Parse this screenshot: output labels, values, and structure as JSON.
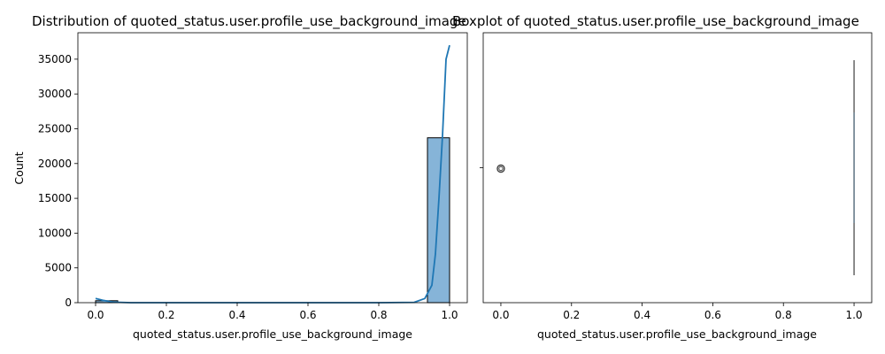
{
  "chart_data": [
    {
      "type": "bar",
      "title": "Distribution of quoted_status.user.profile_use_background_image",
      "xlabel": "quoted_status.user.profile_use_background_image",
      "ylabel": "Count",
      "xlim": [
        -0.05,
        1.05
      ],
      "ylim": [
        0,
        38800
      ],
      "x_ticks": [
        "0.0",
        "0.2",
        "0.4",
        "0.6",
        "0.8",
        "1.0"
      ],
      "y_ticks": [
        "0",
        "5000",
        "10000",
        "15000",
        "20000",
        "25000",
        "30000",
        "35000"
      ],
      "bars": [
        {
          "x0": 0.0,
          "x1": 0.0625,
          "value": 280
        },
        {
          "x0": 0.9375,
          "x1": 1.0,
          "value": 23700
        }
      ],
      "kde": {
        "x": [
          0.0,
          0.02,
          0.05,
          0.1,
          0.2,
          0.5,
          0.8,
          0.9,
          0.93,
          0.95,
          0.96,
          0.97,
          0.98,
          0.99,
          1.0
        ],
        "y": [
          600,
          350,
          80,
          0,
          0,
          0,
          0,
          50,
          600,
          2500,
          7000,
          15000,
          24000,
          35000,
          37000
        ]
      },
      "colors": {
        "bar_fill": "#86b4d8",
        "line": "#1f77b4",
        "edge": "#000000"
      },
      "grid": false
    },
    {
      "type": "box",
      "title": "Boxplot of quoted_status.user.profile_use_background_image",
      "xlabel": "quoted_status.user.profile_use_background_image",
      "xlim": [
        -0.05,
        1.05
      ],
      "x_ticks": [
        "0.0",
        "0.2",
        "0.4",
        "0.6",
        "0.8",
        "1.0"
      ],
      "box": {
        "q1": 1.0,
        "median": 1.0,
        "q3": 1.0,
        "whisker_low": 1.0,
        "whisker_high": 1.0
      },
      "outliers": [
        0.0
      ],
      "colors": {
        "box": "#1f77b4",
        "edge": "#3f3f3f"
      },
      "grid": false
    }
  ]
}
